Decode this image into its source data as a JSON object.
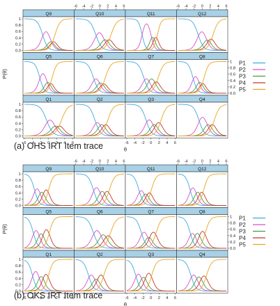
{
  "captions": [
    "(a)   OHS IRT Item trace",
    "(b)  OKS IRT Item trace"
  ],
  "colors": {
    "strip": "#a8d0e6",
    "P1": "#3fa9df",
    "P2": "#d94fc8",
    "P3": "#4e9a3c",
    "P4": "#c0392b",
    "P5": "#e8a521"
  },
  "chart_data": [
    {
      "type": "line",
      "title": "",
      "xlabel": "θ",
      "ylabel": "P(θ)",
      "xlim": [
        -6,
        6
      ],
      "ylim": [
        0,
        1
      ],
      "x_ticks": [
        -6,
        -4,
        -2,
        0,
        2,
        4,
        6
      ],
      "y_ticks": [
        0.0,
        0.2,
        0.4,
        0.6,
        0.8,
        1.0
      ],
      "legend": [
        "P1",
        "P2",
        "P3",
        "P4",
        "P5"
      ],
      "legend_position": "right",
      "panel_rows": [
        [
          "Q9",
          "Q10",
          "Q11",
          "Q12"
        ],
        [
          "Q5",
          "Q6",
          "Q7",
          "Q8"
        ],
        [
          "Q1",
          "Q2",
          "Q3",
          "Q4"
        ]
      ],
      "items": {
        "Q9": {
          "a": 1.6,
          "b": [
            -1.5,
            0.2,
            0.9,
            1.6
          ]
        },
        "Q10": {
          "a": 1.4,
          "b": [
            -1.0,
            0.8,
            1.8,
            2.8
          ]
        },
        "Q11": {
          "a": 2.2,
          "b": [
            -2.2,
            0.0,
            0.8,
            1.6
          ]
        },
        "Q12": {
          "a": 1.5,
          "b": [
            -1.0,
            0.8,
            1.7,
            2.7
          ]
        },
        "Q5": {
          "a": 1.8,
          "b": [
            -2.2,
            -0.6,
            0.2,
            0.9
          ]
        },
        "Q6": {
          "a": 1.5,
          "b": [
            -1.6,
            -0.3,
            0.6,
            1.4
          ]
        },
        "Q7": {
          "a": 1.5,
          "b": [
            -1.8,
            -0.5,
            0.8,
            1.8
          ]
        },
        "Q8": {
          "a": 1.8,
          "b": [
            -2.3,
            -1.0,
            -0.2,
            0.5
          ]
        },
        "Q1": {
          "a": 1.3,
          "b": [
            -0.5,
            1.2,
            2.2,
            3.2
          ]
        },
        "Q2": {
          "a": 1.5,
          "b": [
            -1.2,
            0.0,
            1.0,
            2.0
          ]
        },
        "Q3": {
          "a": 1.5,
          "b": [
            -1.2,
            0.3,
            1.3,
            2.5
          ]
        },
        "Q4": {
          "a": 1.5,
          "b": [
            -0.8,
            1.0,
            2.0,
            3.0
          ]
        }
      }
    },
    {
      "type": "line",
      "title": "",
      "xlabel": "θ",
      "ylabel": "P(θ)",
      "xlim": [
        -6,
        6
      ],
      "ylim": [
        0,
        1
      ],
      "x_ticks": [
        -6,
        -4,
        -2,
        0,
        2,
        4,
        6
      ],
      "y_ticks": [
        0.0,
        0.2,
        0.4,
        0.6,
        0.8,
        1.0
      ],
      "legend": [
        "P1",
        "P2",
        "P3",
        "P4",
        "P5"
      ],
      "legend_position": "right",
      "panel_rows": [
        [
          "Q9",
          "Q10",
          "Q11",
          "Q12"
        ],
        [
          "Q5",
          "Q6",
          "Q7",
          "Q8"
        ],
        [
          "Q1",
          "Q2",
          "Q3",
          "Q4"
        ]
      ],
      "items": {
        "Q9": {
          "a": 1.8,
          "b": [
            -3.5,
            -2.2,
            -1.2,
            0.0
          ]
        },
        "Q10": {
          "a": 1.6,
          "b": [
            -1.6,
            0.0,
            1.2,
            2.4
          ]
        },
        "Q11": {
          "a": 1.7,
          "b": [
            -3.0,
            -1.8,
            -0.9,
            0.1
          ]
        },
        "Q12": {
          "a": 1.8,
          "b": [
            -3.0,
            -1.6,
            -0.6,
            0.4
          ]
        },
        "Q5": {
          "a": 1.8,
          "b": [
            -3.8,
            -2.4,
            -1.3,
            0.2
          ]
        },
        "Q6": {
          "a": 1.4,
          "b": [
            -1.6,
            0.2,
            1.5,
            2.7
          ]
        },
        "Q7": {
          "a": 1.6,
          "b": [
            -2.4,
            -1.0,
            -0.1,
            1.3
          ]
        },
        "Q8": {
          "a": 1.7,
          "b": [
            -3.0,
            -1.8,
            -0.6,
            0.8
          ]
        },
        "Q1": {
          "a": 1.8,
          "b": [
            -4.0,
            -2.4,
            -1.3,
            0.0
          ]
        },
        "Q2": {
          "a": 1.6,
          "b": [
            -2.8,
            -1.4,
            -0.4,
            1.0
          ]
        },
        "Q3": {
          "a": 1.7,
          "b": [
            -3.8,
            -2.4,
            -1.3,
            0.2
          ]
        },
        "Q4": {
          "a": 1.6,
          "b": [
            -2.8,
            -1.4,
            -0.2,
            1.1
          ]
        }
      }
    }
  ]
}
